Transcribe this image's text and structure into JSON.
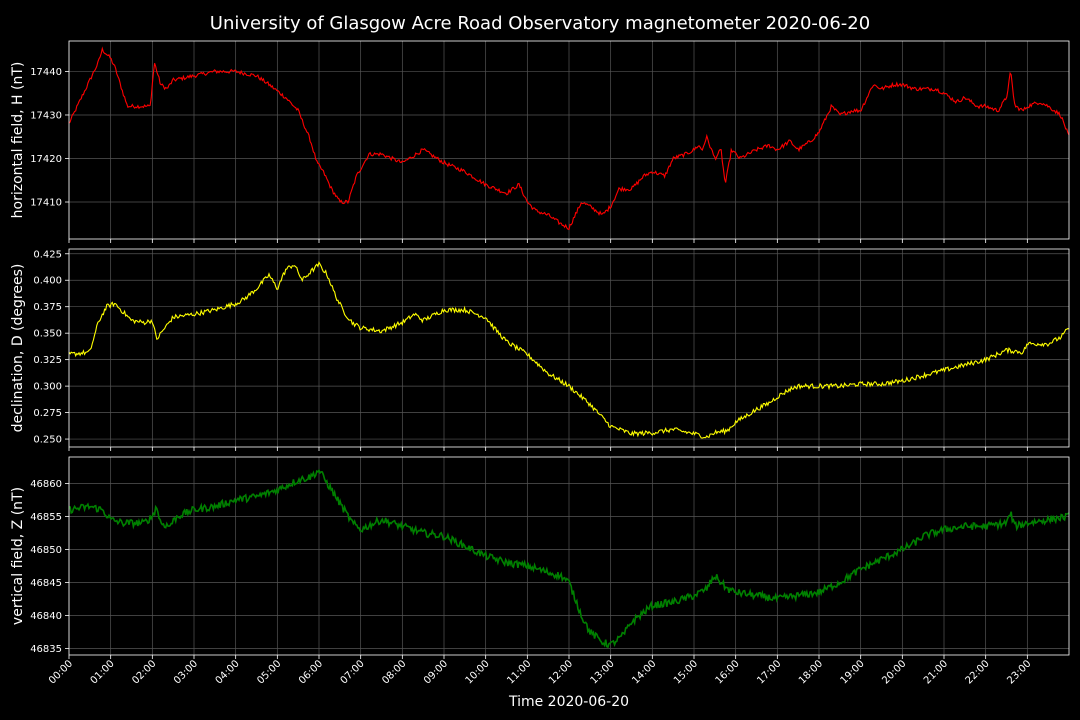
{
  "chart_data": {
    "type": "line",
    "title": "University of Glasgow Acre Road Observatory magnetometer 2020-06-20",
    "xlabel": "Time 2020-06-20",
    "x_tick_labels": [
      "00:00",
      "01:00",
      "02:00",
      "03:00",
      "04:00",
      "05:00",
      "06:00",
      "07:00",
      "08:00",
      "09:00",
      "10:00",
      "11:00",
      "12:00",
      "13:00",
      "14:00",
      "15:00",
      "16:00",
      "17:00",
      "18:00",
      "19:00",
      "20:00",
      "21:00",
      "22:00",
      "23:00"
    ],
    "xlim_hours": [
      0,
      24
    ],
    "grid": true,
    "background": "#000000",
    "panels": [
      {
        "ylabel": "horizontal field, H (nT)",
        "color": "#ff0000",
        "ylim": [
          17401.5,
          17447
        ],
        "yticks": [
          17410,
          17420,
          17430,
          17440
        ],
        "ytick_labels": [
          "17410",
          "17420",
          "17430",
          "17440"
        ],
        "noise": 0.45,
        "series": {
          "x_hours": [
            0,
            0.1,
            0.3,
            0.5,
            0.7,
            0.8,
            1.0,
            1.1,
            1.2,
            1.4,
            1.6,
            1.8,
            1.95,
            2.05,
            2.2,
            2.35,
            2.5,
            3.0,
            3.5,
            4.0,
            4.5,
            4.8,
            5.2,
            5.5,
            5.8,
            5.95,
            6.1,
            6.3,
            6.5,
            6.7,
            6.9,
            7.2,
            7.5,
            8.0,
            8.5,
            9.0,
            9.5,
            10.0,
            10.5,
            10.8,
            11.0,
            11.2,
            11.5,
            11.8,
            12.0,
            12.3,
            12.5,
            12.8,
            13.0,
            13.2,
            13.5,
            13.8,
            14.0,
            14.3,
            14.5,
            14.8,
            15.0,
            15.1,
            15.2,
            15.3,
            15.5,
            15.65,
            15.75,
            15.9,
            16.1,
            16.3,
            16.5,
            16.8,
            17.0,
            17.3,
            17.5,
            17.8,
            18.0,
            18.3,
            18.5,
            18.8,
            19.0,
            19.3,
            19.5,
            19.8,
            20.0,
            20.3,
            20.5,
            20.8,
            21.0,
            21.3,
            21.5,
            21.8,
            22.0,
            22.3,
            22.5,
            22.6,
            22.7,
            22.9,
            23.0,
            23.3,
            23.5,
            23.8,
            24.0
          ],
          "values": [
            17428,
            17430,
            17434,
            17438,
            17442,
            17445,
            17443,
            17441,
            17438,
            17432,
            17432,
            17432,
            17432,
            17442,
            17437,
            17436,
            17438,
            17439,
            17440,
            17440,
            17439,
            17437,
            17434,
            17431,
            17424,
            17419,
            17417,
            17413,
            17410,
            17410,
            17416,
            17421,
            17421,
            17419,
            17422,
            17419,
            17417,
            17414,
            17412,
            17414,
            17410,
            17408,
            17407,
            17405,
            17404,
            17410,
            17409,
            17407,
            17409,
            17413,
            17413,
            17416,
            17417,
            17416,
            17420,
            17421,
            17422,
            17423,
            17422,
            17425,
            17420,
            17422,
            17414,
            17422,
            17420,
            17421,
            17422,
            17423,
            17422,
            17424,
            17422,
            17424,
            17426,
            17432,
            17430,
            17431,
            17431,
            17437,
            17436,
            17437,
            17437,
            17436,
            17436,
            17436,
            17435,
            17433,
            17434,
            17432,
            17432,
            17431,
            17434,
            17440,
            17432,
            17431,
            17432,
            17433,
            17432,
            17430,
            17425
          ]
        }
      },
      {
        "ylabel": "declination, D (degrees)",
        "color": "#ffff00",
        "ylim": [
          0.2425,
          0.4295
        ],
        "yticks": [
          0.25,
          0.275,
          0.3,
          0.325,
          0.35,
          0.375,
          0.4,
          0.425
        ],
        "ytick_labels": [
          "0.250",
          "0.275",
          "0.300",
          "0.325",
          "0.350",
          "0.375",
          "0.400",
          "0.425"
        ],
        "noise": 0.0022,
        "series": {
          "x_hours": [
            0,
            0.5,
            0.7,
            0.9,
            1.1,
            1.3,
            1.5,
            1.8,
            2.0,
            2.1,
            2.3,
            2.5,
            3.0,
            3.5,
            4.0,
            4.2,
            4.5,
            4.8,
            5.0,
            5.2,
            5.4,
            5.6,
            5.8,
            6.0,
            6.2,
            6.4,
            6.6,
            6.8,
            7.0,
            7.5,
            8.0,
            8.3,
            8.5,
            9.0,
            9.5,
            10.0,
            10.2,
            10.5,
            11.0,
            11.5,
            12.0,
            12.5,
            13.0,
            13.5,
            14.0,
            14.5,
            15.0,
            15.3,
            15.5,
            15.8,
            16.0,
            16.3,
            16.5,
            16.8,
            17.0,
            17.3,
            17.5,
            18.0,
            18.5,
            19.0,
            19.5,
            20.0,
            20.5,
            21.0,
            21.5,
            22.0,
            22.5,
            22.9,
            23.0,
            23.5,
            23.8,
            24.0
          ],
          "values": [
            0.33,
            0.332,
            0.36,
            0.375,
            0.378,
            0.37,
            0.362,
            0.36,
            0.362,
            0.344,
            0.355,
            0.365,
            0.368,
            0.372,
            0.378,
            0.382,
            0.392,
            0.405,
            0.392,
            0.41,
            0.415,
            0.4,
            0.408,
            0.415,
            0.405,
            0.385,
            0.37,
            0.36,
            0.355,
            0.352,
            0.36,
            0.368,
            0.362,
            0.372,
            0.372,
            0.365,
            0.355,
            0.342,
            0.33,
            0.312,
            0.3,
            0.283,
            0.262,
            0.255,
            0.256,
            0.259,
            0.255,
            0.252,
            0.256,
            0.258,
            0.266,
            0.273,
            0.278,
            0.284,
            0.29,
            0.297,
            0.3,
            0.3,
            0.3,
            0.302,
            0.302,
            0.305,
            0.31,
            0.315,
            0.32,
            0.325,
            0.334,
            0.332,
            0.34,
            0.34,
            0.346,
            0.355
          ]
        }
      },
      {
        "ylabel": "vertical field, Z (nT)",
        "color": "#008000",
        "ylim": [
          46834,
          46864
        ],
        "yticks": [
          46835,
          46840,
          46845,
          46850,
          46855,
          46860
        ],
        "ytick_labels": [
          "46835",
          "46840",
          "46845",
          "46850",
          "46855",
          "46860"
        ],
        "noise": 0.55,
        "series": {
          "x_hours": [
            0,
            0.5,
            0.8,
            1.0,
            1.3,
            1.5,
            1.8,
            2.0,
            2.1,
            2.2,
            2.4,
            2.6,
            3.0,
            3.5,
            4.0,
            4.5,
            5.0,
            5.5,
            5.8,
            6.0,
            6.2,
            6.5,
            6.8,
            7.0,
            7.5,
            8.0,
            8.5,
            9.0,
            9.5,
            10.0,
            10.5,
            11.0,
            11.5,
            11.8,
            12.0,
            12.3,
            12.5,
            12.8,
            13.0,
            13.3,
            13.5,
            13.8,
            14.0,
            14.5,
            15.0,
            15.3,
            15.5,
            15.8,
            16.0,
            16.5,
            17.0,
            17.5,
            18.0,
            18.5,
            19.0,
            19.5,
            20.0,
            20.3,
            20.5,
            21.0,
            21.5,
            22.0,
            22.5,
            22.6,
            22.7,
            23.0,
            23.5,
            24.0
          ],
          "values": [
            46856,
            46856.5,
            46856,
            46854.5,
            46854,
            46854,
            46854,
            46855,
            46856.5,
            46854,
            46853.5,
            46855,
            46856,
            46856.5,
            46857.5,
            46858,
            46859,
            46860.5,
            46861,
            46862,
            46860,
            46857,
            46854,
            46853,
            46854.5,
            46853.5,
            46852.5,
            46852,
            46850.5,
            46849,
            46848,
            46847.5,
            46846.5,
            46846,
            46845,
            46840,
            46837.5,
            46836,
            46835.5,
            46837,
            46839,
            46840.5,
            46841.5,
            46842,
            46843,
            46844,
            46846,
            46844,
            46843.5,
            46843,
            46842.5,
            46843,
            46843.5,
            46845,
            46847,
            46848.5,
            46850,
            46851,
            46852,
            46853,
            46853.5,
            46853.5,
            46854,
            46855.5,
            46853.5,
            46854,
            46854.5,
            46855
          ]
        }
      }
    ]
  }
}
